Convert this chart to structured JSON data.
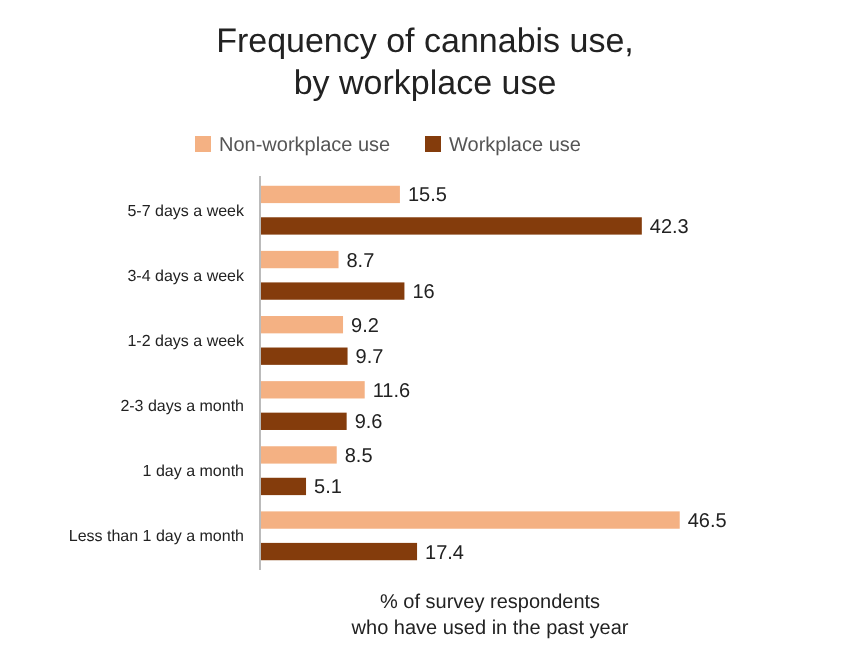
{
  "chart_data": {
    "type": "bar",
    "orientation": "horizontal",
    "title": "Frequency of cannabis use,\nby workplace use",
    "xlabel": "% of survey respondents\nwho have used in the past year",
    "categories": [
      "5-7 days a week",
      "3-4 days a week",
      "1-2 days a week",
      "2-3 days a month",
      "1 day a month",
      "Less than 1 day a month"
    ],
    "series": [
      {
        "name": "Non-workplace use",
        "color": "#f4b183",
        "values": [
          15.5,
          8.7,
          9.2,
          11.6,
          8.5,
          46.5
        ]
      },
      {
        "name": "Workplace use",
        "color": "#843c0c",
        "values": [
          42.3,
          16,
          9.7,
          9.6,
          5.1,
          17.4
        ]
      }
    ],
    "data_labels": true,
    "legend": "top"
  }
}
